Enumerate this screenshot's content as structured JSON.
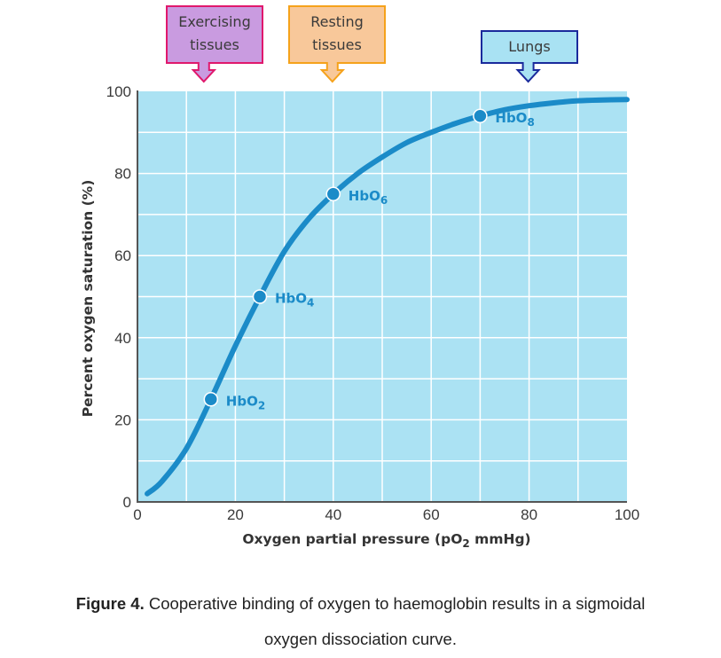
{
  "chart_data": {
    "type": "line",
    "title": "",
    "xlabel": "Oxygen partial pressure (pO2 mmHg)",
    "xlabel_parts": {
      "pre": "Oxygen partial pressure (pO",
      "sub": "2",
      "post": " mmHg)"
    },
    "ylabel": "Percent oxygen saturation (%)",
    "xlim": [
      0,
      100
    ],
    "ylim": [
      0,
      100
    ],
    "x_ticks": [
      0,
      20,
      40,
      60,
      80,
      100
    ],
    "x_tick_labels": [
      "0",
      "20",
      "40",
      "60",
      "80",
      "100"
    ],
    "y_ticks": [
      0,
      20,
      40,
      60,
      80,
      100
    ],
    "y_tick_labels": [
      "0",
      "20",
      "40",
      "60",
      "80",
      "100"
    ],
    "grid": true,
    "grid_x_step": 10,
    "grid_y_step": 10,
    "series": [
      {
        "name": "Oxygen dissociation curve",
        "color": "#1b8bc8",
        "x": [
          2,
          5,
          10,
          15,
          20,
          25,
          30,
          35,
          40,
          45,
          50,
          55,
          60,
          65,
          70,
          75,
          80,
          85,
          90,
          95,
          100
        ],
        "y": [
          2,
          5,
          13,
          25,
          38,
          50,
          61,
          69,
          75,
          80,
          84,
          87.5,
          90,
          92.2,
          94,
          95.5,
          96.5,
          97.2,
          97.7,
          97.9,
          98
        ]
      }
    ],
    "annotations": [
      {
        "x": 15,
        "y": 25,
        "label": "HbO",
        "sub": "2"
      },
      {
        "x": 25,
        "y": 50,
        "label": "HbO",
        "sub": "4"
      },
      {
        "x": 40,
        "y": 75,
        "label": "HbO",
        "sub": "6"
      },
      {
        "x": 70,
        "y": 94,
        "label": "HbO",
        "sub": "8"
      }
    ],
    "callouts": [
      {
        "x": 15,
        "lines": [
          "Exercising",
          "tissues"
        ],
        "fill": "#c99be0",
        "stroke": "#e0186c"
      },
      {
        "x": 40,
        "lines": [
          "Resting",
          "tissues"
        ],
        "fill": "#f8c89a",
        "stroke": "#f5a21b"
      },
      {
        "x": 80,
        "lines": [
          "Lungs"
        ],
        "fill": "#a9e2f3",
        "stroke": "#1a2a9c"
      }
    ],
    "colors": {
      "plot_bg": "#abe2f3",
      "grid": "#ffffff",
      "axis": "#555555",
      "curve": "#1b8bc8"
    }
  },
  "caption": {
    "label": "Figure 4.",
    "text": " Cooperative binding of oxygen to haemoglobin results in a sigmoidal",
    "line2": "oxygen dissociation curve."
  }
}
